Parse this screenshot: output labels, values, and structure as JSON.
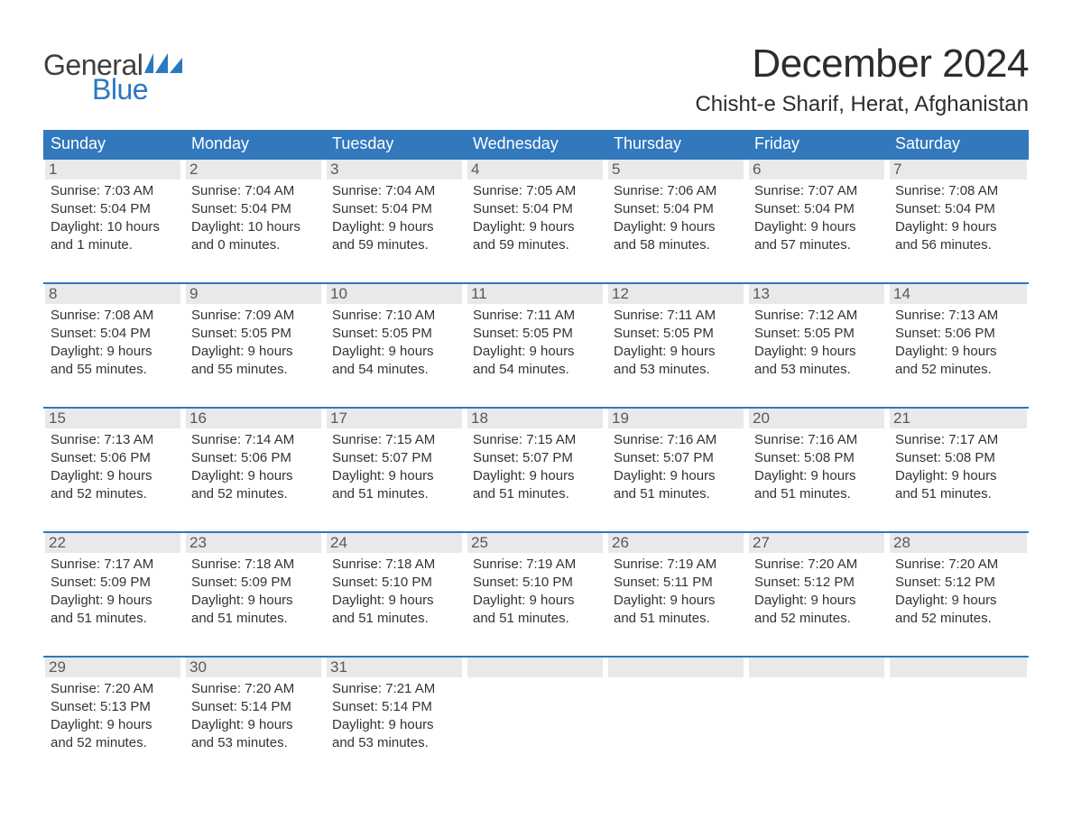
{
  "logo": {
    "text1": "General",
    "text2": "Blue",
    "glyph_color": "#2b78c2"
  },
  "title": "December 2024",
  "subtitle": "Chisht-e Sharif, Herat, Afghanistan",
  "styling": {
    "header_bg": "#3178bd",
    "header_text": "#ffffff",
    "row_border": "#3178bd",
    "daynum_bg": "#e9e9e9",
    "daynum_color": "#595959",
    "body_text": "#333333",
    "page_bg": "#ffffff",
    "title_fontsize": 44,
    "subtitle_fontsize": 24,
    "weekday_fontsize": 18,
    "daynum_fontsize": 17,
    "body_fontsize": 15
  },
  "weekdays": [
    "Sunday",
    "Monday",
    "Tuesday",
    "Wednesday",
    "Thursday",
    "Friday",
    "Saturday"
  ],
  "weeks": [
    [
      {
        "n": "1",
        "sunrise": "Sunrise: 7:03 AM",
        "sunset": "Sunset: 5:04 PM",
        "d1": "Daylight: 10 hours",
        "d2": "and 1 minute."
      },
      {
        "n": "2",
        "sunrise": "Sunrise: 7:04 AM",
        "sunset": "Sunset: 5:04 PM",
        "d1": "Daylight: 10 hours",
        "d2": "and 0 minutes."
      },
      {
        "n": "3",
        "sunrise": "Sunrise: 7:04 AM",
        "sunset": "Sunset: 5:04 PM",
        "d1": "Daylight: 9 hours",
        "d2": "and 59 minutes."
      },
      {
        "n": "4",
        "sunrise": "Sunrise: 7:05 AM",
        "sunset": "Sunset: 5:04 PM",
        "d1": "Daylight: 9 hours",
        "d2": "and 59 minutes."
      },
      {
        "n": "5",
        "sunrise": "Sunrise: 7:06 AM",
        "sunset": "Sunset: 5:04 PM",
        "d1": "Daylight: 9 hours",
        "d2": "and 58 minutes."
      },
      {
        "n": "6",
        "sunrise": "Sunrise: 7:07 AM",
        "sunset": "Sunset: 5:04 PM",
        "d1": "Daylight: 9 hours",
        "d2": "and 57 minutes."
      },
      {
        "n": "7",
        "sunrise": "Sunrise: 7:08 AM",
        "sunset": "Sunset: 5:04 PM",
        "d1": "Daylight: 9 hours",
        "d2": "and 56 minutes."
      }
    ],
    [
      {
        "n": "8",
        "sunrise": "Sunrise: 7:08 AM",
        "sunset": "Sunset: 5:04 PM",
        "d1": "Daylight: 9 hours",
        "d2": "and 55 minutes."
      },
      {
        "n": "9",
        "sunrise": "Sunrise: 7:09 AM",
        "sunset": "Sunset: 5:05 PM",
        "d1": "Daylight: 9 hours",
        "d2": "and 55 minutes."
      },
      {
        "n": "10",
        "sunrise": "Sunrise: 7:10 AM",
        "sunset": "Sunset: 5:05 PM",
        "d1": "Daylight: 9 hours",
        "d2": "and 54 minutes."
      },
      {
        "n": "11",
        "sunrise": "Sunrise: 7:11 AM",
        "sunset": "Sunset: 5:05 PM",
        "d1": "Daylight: 9 hours",
        "d2": "and 54 minutes."
      },
      {
        "n": "12",
        "sunrise": "Sunrise: 7:11 AM",
        "sunset": "Sunset: 5:05 PM",
        "d1": "Daylight: 9 hours",
        "d2": "and 53 minutes."
      },
      {
        "n": "13",
        "sunrise": "Sunrise: 7:12 AM",
        "sunset": "Sunset: 5:05 PM",
        "d1": "Daylight: 9 hours",
        "d2": "and 53 minutes."
      },
      {
        "n": "14",
        "sunrise": "Sunrise: 7:13 AM",
        "sunset": "Sunset: 5:06 PM",
        "d1": "Daylight: 9 hours",
        "d2": "and 52 minutes."
      }
    ],
    [
      {
        "n": "15",
        "sunrise": "Sunrise: 7:13 AM",
        "sunset": "Sunset: 5:06 PM",
        "d1": "Daylight: 9 hours",
        "d2": "and 52 minutes."
      },
      {
        "n": "16",
        "sunrise": "Sunrise: 7:14 AM",
        "sunset": "Sunset: 5:06 PM",
        "d1": "Daylight: 9 hours",
        "d2": "and 52 minutes."
      },
      {
        "n": "17",
        "sunrise": "Sunrise: 7:15 AM",
        "sunset": "Sunset: 5:07 PM",
        "d1": "Daylight: 9 hours",
        "d2": "and 51 minutes."
      },
      {
        "n": "18",
        "sunrise": "Sunrise: 7:15 AM",
        "sunset": "Sunset: 5:07 PM",
        "d1": "Daylight: 9 hours",
        "d2": "and 51 minutes."
      },
      {
        "n": "19",
        "sunrise": "Sunrise: 7:16 AM",
        "sunset": "Sunset: 5:07 PM",
        "d1": "Daylight: 9 hours",
        "d2": "and 51 minutes."
      },
      {
        "n": "20",
        "sunrise": "Sunrise: 7:16 AM",
        "sunset": "Sunset: 5:08 PM",
        "d1": "Daylight: 9 hours",
        "d2": "and 51 minutes."
      },
      {
        "n": "21",
        "sunrise": "Sunrise: 7:17 AM",
        "sunset": "Sunset: 5:08 PM",
        "d1": "Daylight: 9 hours",
        "d2": "and 51 minutes."
      }
    ],
    [
      {
        "n": "22",
        "sunrise": "Sunrise: 7:17 AM",
        "sunset": "Sunset: 5:09 PM",
        "d1": "Daylight: 9 hours",
        "d2": "and 51 minutes."
      },
      {
        "n": "23",
        "sunrise": "Sunrise: 7:18 AM",
        "sunset": "Sunset: 5:09 PM",
        "d1": "Daylight: 9 hours",
        "d2": "and 51 minutes."
      },
      {
        "n": "24",
        "sunrise": "Sunrise: 7:18 AM",
        "sunset": "Sunset: 5:10 PM",
        "d1": "Daylight: 9 hours",
        "d2": "and 51 minutes."
      },
      {
        "n": "25",
        "sunrise": "Sunrise: 7:19 AM",
        "sunset": "Sunset: 5:10 PM",
        "d1": "Daylight: 9 hours",
        "d2": "and 51 minutes."
      },
      {
        "n": "26",
        "sunrise": "Sunrise: 7:19 AM",
        "sunset": "Sunset: 5:11 PM",
        "d1": "Daylight: 9 hours",
        "d2": "and 51 minutes."
      },
      {
        "n": "27",
        "sunrise": "Sunrise: 7:20 AM",
        "sunset": "Sunset: 5:12 PM",
        "d1": "Daylight: 9 hours",
        "d2": "and 52 minutes."
      },
      {
        "n": "28",
        "sunrise": "Sunrise: 7:20 AM",
        "sunset": "Sunset: 5:12 PM",
        "d1": "Daylight: 9 hours",
        "d2": "and 52 minutes."
      }
    ],
    [
      {
        "n": "29",
        "sunrise": "Sunrise: 7:20 AM",
        "sunset": "Sunset: 5:13 PM",
        "d1": "Daylight: 9 hours",
        "d2": "and 52 minutes."
      },
      {
        "n": "30",
        "sunrise": "Sunrise: 7:20 AM",
        "sunset": "Sunset: 5:14 PM",
        "d1": "Daylight: 9 hours",
        "d2": "and 53 minutes."
      },
      {
        "n": "31",
        "sunrise": "Sunrise: 7:21 AM",
        "sunset": "Sunset: 5:14 PM",
        "d1": "Daylight: 9 hours",
        "d2": "and 53 minutes."
      },
      {
        "empty": true
      },
      {
        "empty": true
      },
      {
        "empty": true
      },
      {
        "empty": true
      }
    ]
  ]
}
